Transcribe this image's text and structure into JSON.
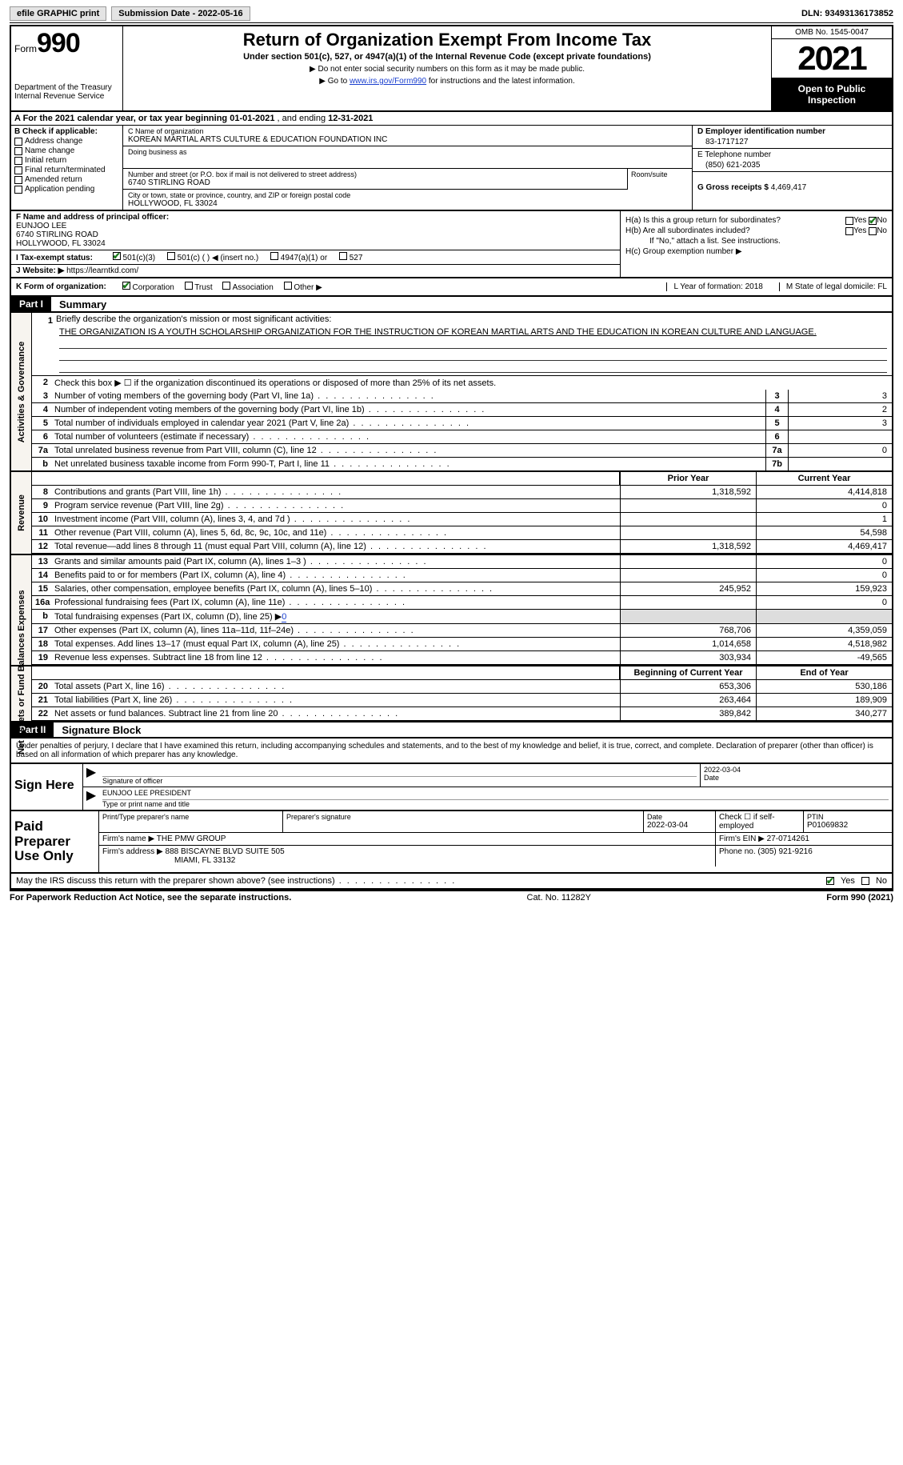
{
  "topbar": {
    "efile": "efile GRAPHIC print",
    "submission": "Submission Date - 2022-05-16",
    "dln": "DLN: 93493136173852"
  },
  "header": {
    "form_label": "Form",
    "form_num": "990",
    "dept": "Department of the Treasury Internal Revenue Service",
    "title": "Return of Organization Exempt From Income Tax",
    "subtitle": "Under section 501(c), 527, or 4947(a)(1) of the Internal Revenue Code (except private foundations)",
    "note1": "▶ Do not enter social security numbers on this form as it may be made public.",
    "note2_pre": "▶ Go to ",
    "note2_link": "www.irs.gov/Form990",
    "note2_post": " for instructions and the latest information.",
    "omb": "OMB No. 1545-0047",
    "year": "2021",
    "open": "Open to Public Inspection"
  },
  "A": {
    "text_pre": "A For the 2021 calendar year, or tax year beginning ",
    "begin": "01-01-2021",
    "mid": " , and ending ",
    "end": "12-31-2021"
  },
  "B": {
    "label": "B Check if applicable:",
    "items": [
      "Address change",
      "Name change",
      "Initial return",
      "Final return/terminated",
      "Amended return",
      "Application pending"
    ]
  },
  "C": {
    "name_lbl": "C Name of organization",
    "name": "KOREAN MARTIAL ARTS CULTURE & EDUCATION FOUNDATION INC",
    "dba_lbl": "Doing business as",
    "dba": "",
    "street_lbl": "Number and street (or P.O. box if mail is not delivered to street address)",
    "street": "6740 STIRLING ROAD",
    "room_lbl": "Room/suite",
    "city_lbl": "City or town, state or province, country, and ZIP or foreign postal code",
    "city": "HOLLYWOOD, FL  33024"
  },
  "D": {
    "ein_lbl": "D Employer identification number",
    "ein": "83-1717127",
    "tel_lbl": "E Telephone number",
    "tel": "(850) 621-2035",
    "gross_lbl": "G Gross receipts $",
    "gross": "4,469,417"
  },
  "F": {
    "lbl": "F Name and address of principal officer:",
    "name": "EUNJOO LEE",
    "street": "6740 STIRLING ROAD",
    "city": "HOLLYWOOD, FL  33024"
  },
  "I": {
    "lbl": "I    Tax-exempt status:",
    "opts": [
      "501(c)(3)",
      "501(c) (  ) ◀ (insert no.)",
      "4947(a)(1) or",
      "527"
    ]
  },
  "J": {
    "lbl": "J   Website: ▶",
    "val": "https://learntkd.com/"
  },
  "H": {
    "a_q": "H(a)  Is this a group return for subordinates?",
    "b_q": "H(b)  Are all subordinates included?",
    "b_note": "If \"No,\" attach a list. See instructions.",
    "c_q": "H(c)  Group exemption number ▶",
    "yes": "Yes",
    "no": "No"
  },
  "K": {
    "lbl": "K Form of organization:",
    "opts": [
      "Corporation",
      "Trust",
      "Association",
      "Other ▶"
    ],
    "L": "L Year of formation: 2018",
    "M": "M State of legal domicile: FL"
  },
  "part1": {
    "hdr": "Part I",
    "title": "Summary",
    "mission_lbl": "Briefly describe the organization's mission or most significant activities:",
    "mission": "THE ORGANIZATION IS A YOUTH SCHOLARSHIP ORGANIZATION FOR THE INSTRUCTION OF KOREAN MARTIAL ARTS AND THE EDUCATION IN KOREAN CULTURE AND LANGUAGE.",
    "line2": "Check this box ▶ ☐ if the organization discontinued its operations or disposed of more than 25% of its net assets.",
    "gov_label": "Activities & Governance",
    "rev_label": "Revenue",
    "exp_label": "Expenses",
    "na_label": "Net Assets or Fund Balances",
    "rows_gov": [
      {
        "n": "3",
        "t": "Number of voting members of the governing body (Part VI, line 1a)",
        "box": "3",
        "v": "3"
      },
      {
        "n": "4",
        "t": "Number of independent voting members of the governing body (Part VI, line 1b)",
        "box": "4",
        "v": "2"
      },
      {
        "n": "5",
        "t": "Total number of individuals employed in calendar year 2021 (Part V, line 2a)",
        "box": "5",
        "v": "3"
      },
      {
        "n": "6",
        "t": "Total number of volunteers (estimate if necessary)",
        "box": "6",
        "v": ""
      },
      {
        "n": "7a",
        "t": "Total unrelated business revenue from Part VIII, column (C), line 12",
        "box": "7a",
        "v": "0"
      },
      {
        "n": "b",
        "t": "Net unrelated business taxable income from Form 990-T, Part I, line 11",
        "box": "7b",
        "v": ""
      }
    ],
    "col_hdr": {
      "prior": "Prior Year",
      "current": "Current Year"
    },
    "rows_rev": [
      {
        "n": "8",
        "t": "Contributions and grants (Part VIII, line 1h)",
        "p": "1,318,592",
        "c": "4,414,818"
      },
      {
        "n": "9",
        "t": "Program service revenue (Part VIII, line 2g)",
        "p": "",
        "c": "0"
      },
      {
        "n": "10",
        "t": "Investment income (Part VIII, column (A), lines 3, 4, and 7d )",
        "p": "",
        "c": "1"
      },
      {
        "n": "11",
        "t": "Other revenue (Part VIII, column (A), lines 5, 6d, 8c, 9c, 10c, and 11e)",
        "p": "",
        "c": "54,598"
      },
      {
        "n": "12",
        "t": "Total revenue—add lines 8 through 11 (must equal Part VIII, column (A), line 12)",
        "p": "1,318,592",
        "c": "4,469,417"
      }
    ],
    "rows_exp": [
      {
        "n": "13",
        "t": "Grants and similar amounts paid (Part IX, column (A), lines 1–3 )",
        "p": "",
        "c": "0"
      },
      {
        "n": "14",
        "t": "Benefits paid to or for members (Part IX, column (A), line 4)",
        "p": "",
        "c": "0"
      },
      {
        "n": "15",
        "t": "Salaries, other compensation, employee benefits (Part IX, column (A), lines 5–10)",
        "p": "245,952",
        "c": "159,923"
      },
      {
        "n": "16a",
        "t": "Professional fundraising fees (Part IX, column (A), line 11e)",
        "p": "",
        "c": "0"
      },
      {
        "n": "b",
        "t": "Total fundraising expenses (Part IX, column (D), line 25) ▶",
        "fund": "0",
        "noColumns": true
      },
      {
        "n": "17",
        "t": "Other expenses (Part IX, column (A), lines 11a–11d, 11f–24e)",
        "p": "768,706",
        "c": "4,359,059"
      },
      {
        "n": "18",
        "t": "Total expenses. Add lines 13–17 (must equal Part IX, column (A), line 25)",
        "p": "1,014,658",
        "c": "4,518,982"
      },
      {
        "n": "19",
        "t": "Revenue less expenses. Subtract line 18 from line 12",
        "p": "303,934",
        "c": "-49,565"
      }
    ],
    "na_hdr": {
      "begin": "Beginning of Current Year",
      "end": "End of Year"
    },
    "rows_na": [
      {
        "n": "20",
        "t": "Total assets (Part X, line 16)",
        "p": "653,306",
        "c": "530,186"
      },
      {
        "n": "21",
        "t": "Total liabilities (Part X, line 26)",
        "p": "263,464",
        "c": "189,909"
      },
      {
        "n": "22",
        "t": "Net assets or fund balances. Subtract line 21 from line 20",
        "p": "389,842",
        "c": "340,277"
      }
    ]
  },
  "part2": {
    "hdr": "Part II",
    "title": "Signature Block",
    "decl": "Under penalties of perjury, I declare that I have examined this return, including accompanying schedules and statements, and to the best of my knowledge and belief, it is true, correct, and complete. Declaration of preparer (other than officer) is based on all information of which preparer has any knowledge.",
    "sign_here": "Sign Here",
    "sig_officer_lbl": "Signature of officer",
    "sig_date": "2022-03-04",
    "date_lbl": "Date",
    "typed_name": "EUNJOO LEE PRESIDENT",
    "typed_lbl": "Type or print name and title",
    "paid_lbl": "Paid Preparer Use Only",
    "prep_name_lbl": "Print/Type preparer's name",
    "prep_sig_lbl": "Preparer's signature",
    "prep_date_lbl": "Date",
    "prep_date": "2022-03-04",
    "self_emp": "Check ☐ if self-employed",
    "ptin_lbl": "PTIN",
    "ptin": "P01069832",
    "firm_name_lbl": "Firm's name    ▶",
    "firm_name": "THE PMW GROUP",
    "firm_ein_lbl": "Firm's EIN ▶",
    "firm_ein": "27-0714261",
    "firm_addr_lbl": "Firm's address ▶",
    "firm_addr1": "888 BISCAYNE BLVD SUITE 505",
    "firm_addr2": "MIAMI, FL  33132",
    "phone_lbl": "Phone no.",
    "phone": "(305) 921-9216",
    "may_irs": "May the IRS discuss this return with the preparer shown above? (see instructions)",
    "yes": "Yes",
    "no": "No"
  },
  "footer": {
    "left": "For Paperwork Reduction Act Notice, see the separate instructions.",
    "mid": "Cat. No. 11282Y",
    "right": "Form 990 (2021)"
  }
}
